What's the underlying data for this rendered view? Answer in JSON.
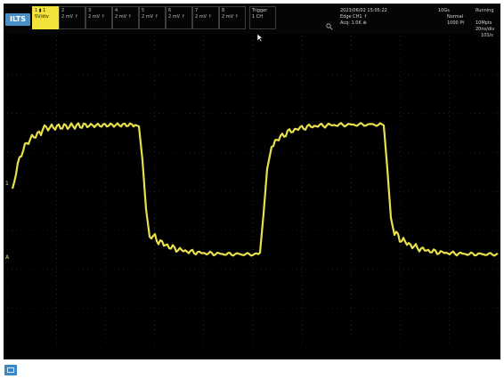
{
  "topbar": {
    "badge": "ILTS",
    "channels": [
      {
        "id": "1",
        "line1": "1  ▮ 1",
        "line2": "5V/div",
        "active": true
      },
      {
        "id": "2",
        "line1": "2",
        "line2": "2 mV ↑",
        "active": false
      },
      {
        "id": "3",
        "line1": "3",
        "line2": "2 mV ↑",
        "active": false
      },
      {
        "id": "4",
        "line1": "4",
        "line2": "2 mV ↑",
        "active": false
      },
      {
        "id": "5",
        "line1": "5",
        "line2": "2 mV ↑",
        "active": false
      },
      {
        "id": "6",
        "line1": "6",
        "line2": "2 mV ↑",
        "active": false
      },
      {
        "id": "7",
        "line1": "7",
        "line2": "2 mV ↑",
        "active": false
      },
      {
        "id": "8",
        "line1": "8",
        "line2": "2 mV ↑",
        "active": false
      }
    ],
    "trigger_box": {
      "line1": "Trigger",
      "line2": "1 CH"
    },
    "datetime": "2023/06/02  15:05:22",
    "edge": "Edge  CH1  ↑",
    "acq": "Acq: 1.0K  ⊕",
    "sample": "10Gs",
    "status": "Running",
    "mode": "Normal",
    "points": "1000 Pt",
    "record": "10Mpts",
    "timediv": "20ns/div",
    "samp_rate": "10S/s"
  },
  "plot": {
    "channel_marker": "1",
    "level_marker": "A",
    "trace_color": "#e8e04a",
    "grid_color": "#3b3b3b"
  },
  "waveform": {
    "type": "square",
    "high_level": 3.5,
    "low_level": -4.0,
    "transitions": [
      {
        "kind": "falling",
        "at_div": 2.6
      },
      {
        "kind": "rising",
        "at_div": 5.2
      },
      {
        "kind": "falling",
        "at_div": 7.8
      }
    ]
  }
}
